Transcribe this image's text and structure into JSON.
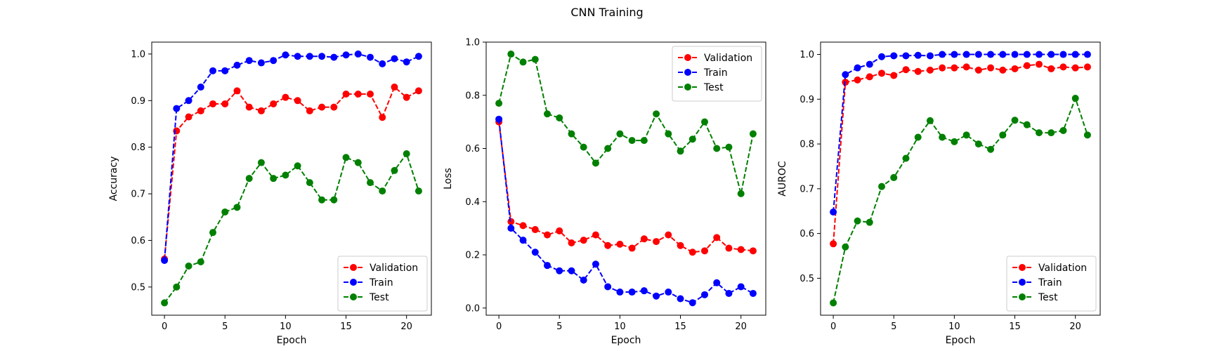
{
  "figure": {
    "title": "CNN Training"
  },
  "chart_data": [
    {
      "type": "line",
      "xlabel": "Epoch",
      "ylabel": "Accuracy",
      "xlim": [
        -1.05,
        22.05
      ],
      "ylim": [
        0.4395,
        1.0255
      ],
      "xticks": [
        0,
        5,
        10,
        15,
        20
      ],
      "yticks": [
        0.5,
        0.6,
        0.7,
        0.8,
        0.9,
        1.0
      ],
      "ytick_labels": [
        "0.5",
        "0.6",
        "0.7",
        "0.8",
        "0.9",
        "1.0"
      ],
      "legend": "lower-right",
      "x": [
        0,
        1,
        2,
        3,
        4,
        5,
        6,
        7,
        8,
        9,
        10,
        11,
        12,
        13,
        14,
        15,
        16,
        17,
        18,
        19,
        20,
        21
      ],
      "series": [
        {
          "name": "Validation",
          "color": "#ff0000",
          "values": [
            0.56,
            0.835,
            0.865,
            0.878,
            0.893,
            0.893,
            0.921,
            0.886,
            0.878,
            0.893,
            0.907,
            0.9,
            0.878,
            0.886,
            0.886,
            0.914,
            0.914,
            0.914,
            0.864,
            0.929,
            0.907,
            0.921
          ]
        },
        {
          "name": "Train",
          "color": "#0000ff",
          "values": [
            0.557,
            0.883,
            0.9,
            0.929,
            0.964,
            0.964,
            0.976,
            0.986,
            0.981,
            0.986,
            0.998,
            0.995,
            0.995,
            0.995,
            0.993,
            0.998,
            1.0,
            0.993,
            0.979,
            0.99,
            0.983,
            0.995
          ]
        },
        {
          "name": "Test",
          "color": "#008000",
          "values": [
            0.466,
            0.5,
            0.545,
            0.554,
            0.617,
            0.661,
            0.671,
            0.733,
            0.767,
            0.733,
            0.74,
            0.76,
            0.724,
            0.687,
            0.687,
            0.778,
            0.767,
            0.724,
            0.706,
            0.75,
            0.786,
            0.706
          ]
        }
      ]
    },
    {
      "type": "line",
      "xlabel": "Epoch",
      "ylabel": "Loss",
      "xlim": [
        -1.05,
        22.05
      ],
      "ylim": [
        -0.027,
        1.0
      ],
      "xticks": [
        0,
        5,
        10,
        15,
        20
      ],
      "yticks": [
        0.0,
        0.2,
        0.4,
        0.6,
        0.8,
        1.0
      ],
      "ytick_labels": [
        "0.0",
        "0.2",
        "0.4",
        "0.6",
        "0.8",
        "1.0"
      ],
      "legend": "top-right",
      "x": [
        0,
        1,
        2,
        3,
        4,
        5,
        6,
        7,
        8,
        9,
        10,
        11,
        12,
        13,
        14,
        15,
        16,
        17,
        18,
        19,
        20,
        21
      ],
      "series": [
        {
          "name": "Validation",
          "color": "#ff0000",
          "values": [
            0.7,
            0.325,
            0.31,
            0.295,
            0.275,
            0.29,
            0.245,
            0.255,
            0.275,
            0.235,
            0.24,
            0.225,
            0.26,
            0.25,
            0.275,
            0.235,
            0.21,
            0.215,
            0.265,
            0.225,
            0.22,
            0.215
          ]
        },
        {
          "name": "Train",
          "color": "#0000ff",
          "values": [
            0.71,
            0.3,
            0.255,
            0.21,
            0.16,
            0.14,
            0.14,
            0.105,
            0.165,
            0.08,
            0.06,
            0.06,
            0.065,
            0.045,
            0.06,
            0.035,
            0.02,
            0.05,
            0.095,
            0.055,
            0.08,
            0.055
          ]
        },
        {
          "name": "Test",
          "color": "#008000",
          "values": [
            0.77,
            0.955,
            0.925,
            0.935,
            0.73,
            0.715,
            0.655,
            0.605,
            0.545,
            0.6,
            0.655,
            0.63,
            0.63,
            0.73,
            0.655,
            0.59,
            0.635,
            0.7,
            0.6,
            0.605,
            0.43,
            0.655
          ]
        }
      ]
    },
    {
      "type": "line",
      "xlabel": "Epoch",
      "ylabel": "AUROC",
      "xlim": [
        -1.05,
        22.05
      ],
      "ylim": [
        0.4175,
        1.0275
      ],
      "xticks": [
        0,
        5,
        10,
        15,
        20
      ],
      "yticks": [
        0.5,
        0.6,
        0.7,
        0.8,
        0.9,
        1.0
      ],
      "ytick_labels": [
        "0.5",
        "0.6",
        "0.7",
        "0.8",
        "0.9",
        "1.0"
      ],
      "legend": "lower-right",
      "x": [
        0,
        1,
        2,
        3,
        4,
        5,
        6,
        7,
        8,
        9,
        10,
        11,
        12,
        13,
        14,
        15,
        16,
        17,
        18,
        19,
        20,
        21
      ],
      "series": [
        {
          "name": "Validation",
          "color": "#ff0000",
          "values": [
            0.577,
            0.938,
            0.943,
            0.95,
            0.958,
            0.953,
            0.966,
            0.962,
            0.965,
            0.97,
            0.97,
            0.972,
            0.965,
            0.97,
            0.965,
            0.968,
            0.975,
            0.978,
            0.968,
            0.972,
            0.97,
            0.972
          ]
        },
        {
          "name": "Train",
          "color": "#0000ff",
          "values": [
            0.648,
            0.955,
            0.97,
            0.978,
            0.995,
            0.997,
            0.997,
            0.998,
            0.997,
            1.0,
            1.0,
            1.0,
            1.0,
            1.0,
            1.0,
            1.0,
            1.0,
            1.0,
            1.0,
            1.0,
            1.0,
            1.0
          ]
        },
        {
          "name": "Test",
          "color": "#008000",
          "values": [
            0.445,
            0.57,
            0.628,
            0.625,
            0.705,
            0.725,
            0.768,
            0.815,
            0.852,
            0.815,
            0.805,
            0.82,
            0.8,
            0.788,
            0.82,
            0.853,
            0.843,
            0.825,
            0.825,
            0.83,
            0.902,
            0.82
          ]
        }
      ]
    }
  ]
}
